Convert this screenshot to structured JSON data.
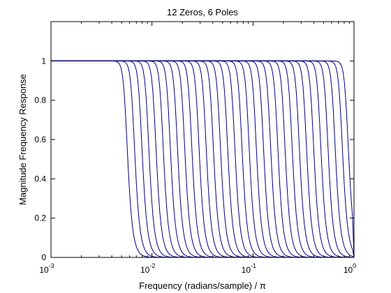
{
  "chart_data": {
    "type": "line",
    "title": "12 Zeros, 6 Poles",
    "xlabel_main": "Frequency (radians/sample) / ",
    "xlabel_symbol": "π",
    "ylabel": "Magnitude Frequency Response",
    "x_scale": "log",
    "xlim": [
      0.001,
      1
    ],
    "ylim": [
      0,
      1.2
    ],
    "x_ticks": [
      {
        "base": "10",
        "exp": "-3",
        "value": 0.001
      },
      {
        "base": "10",
        "exp": "-2",
        "value": 0.01
      },
      {
        "base": "10",
        "exp": "-1",
        "value": 0.1
      },
      {
        "base": "10",
        "exp": "0",
        "value": 1
      }
    ],
    "y_ticks": [
      {
        "label": "0",
        "value": 0
      },
      {
        "label": "0.2",
        "value": 0.2
      },
      {
        "label": "0.4",
        "value": 0.4
      },
      {
        "label": "0.6",
        "value": 0.6
      },
      {
        "label": "0.8",
        "value": 0.8
      },
      {
        "label": "1",
        "value": 1
      }
    ],
    "grid": false,
    "line_color": "#000080",
    "series_cutoffs_x": [
      0.0055,
      0.0065,
      0.0077,
      0.009,
      0.0106,
      0.0125,
      0.0147,
      0.0173,
      0.0204,
      0.024,
      0.0283,
      0.0333,
      0.0392,
      0.0461,
      0.0543,
      0.064,
      0.0753,
      0.0887,
      0.1044,
      0.123,
      0.1448,
      0.1705,
      0.2008,
      0.2364,
      0.2784,
      0.3278,
      0.386,
      0.4545,
      0.535,
      0.63,
      0.742,
      0.85
    ],
    "series_passband_value": 1,
    "series_stopband_value": 0
  }
}
